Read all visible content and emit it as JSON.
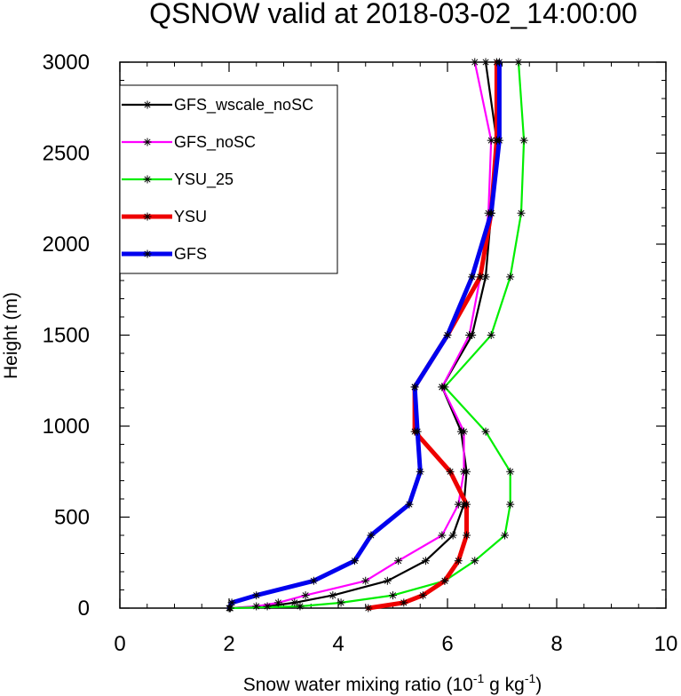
{
  "chart_data": {
    "type": "line",
    "title": "QSNOW valid at 2018-03-02_14:00:00",
    "xlabel": {
      "main": "Snow water mixing ratio (10",
      "sup1": "-1",
      "mid": " g kg",
      "sup2": "-1",
      "end": ")"
    },
    "ylabel": "Height (m)",
    "xlim": [
      0,
      10
    ],
    "ylim": [
      0,
      3000
    ],
    "xticks": [
      "0",
      "2",
      "4",
      "6",
      "8",
      "10"
    ],
    "yticks": [
      "0",
      "500",
      "1000",
      "1500",
      "2000",
      "2500",
      "3000"
    ],
    "legend_position": "top-left",
    "grid": false,
    "series": [
      {
        "name": "GFS_wscale_noSC",
        "color": "#000000",
        "width": "thin",
        "points": [
          [
            2.02,
            0
          ],
          [
            2.7,
            10
          ],
          [
            3.2,
            30
          ],
          [
            3.9,
            70
          ],
          [
            4.9,
            150
          ],
          [
            5.6,
            260
          ],
          [
            6.1,
            400
          ],
          [
            6.3,
            570
          ],
          [
            6.35,
            750
          ],
          [
            6.25,
            970
          ],
          [
            5.9,
            1215
          ],
          [
            6.45,
            1500
          ],
          [
            6.7,
            1820
          ],
          [
            6.8,
            2170
          ],
          [
            6.9,
            2570
          ],
          [
            6.7,
            3000
          ]
        ]
      },
      {
        "name": "GFS_noSC",
        "color": "#ff00ff",
        "width": "thin",
        "points": [
          [
            2.02,
            0
          ],
          [
            2.5,
            10
          ],
          [
            2.9,
            30
          ],
          [
            3.4,
            70
          ],
          [
            4.5,
            150
          ],
          [
            5.1,
            260
          ],
          [
            5.9,
            400
          ],
          [
            6.2,
            570
          ],
          [
            6.3,
            750
          ],
          [
            6.3,
            970
          ],
          [
            5.9,
            1215
          ],
          [
            6.4,
            1500
          ],
          [
            6.6,
            1820
          ],
          [
            6.75,
            2170
          ],
          [
            6.8,
            2570
          ],
          [
            6.5,
            3000
          ]
        ]
      },
      {
        "name": "YSU_25",
        "color": "#00ee00",
        "width": "thin",
        "points": [
          [
            2.02,
            0
          ],
          [
            3.3,
            10
          ],
          [
            4.05,
            30
          ],
          [
            5.0,
            70
          ],
          [
            5.95,
            150
          ],
          [
            6.5,
            260
          ],
          [
            7.05,
            400
          ],
          [
            7.15,
            570
          ],
          [
            7.15,
            750
          ],
          [
            6.7,
            970
          ],
          [
            5.95,
            1215
          ],
          [
            6.8,
            1500
          ],
          [
            7.15,
            1820
          ],
          [
            7.35,
            2170
          ],
          [
            7.4,
            2570
          ],
          [
            7.3,
            3000
          ]
        ]
      },
      {
        "name": "YSU",
        "color": "#ee0000",
        "width": "thick",
        "points": [
          [
            4.55,
            0
          ],
          [
            5.2,
            30
          ],
          [
            5.55,
            70
          ],
          [
            5.95,
            150
          ],
          [
            6.2,
            260
          ],
          [
            6.35,
            400
          ],
          [
            6.35,
            570
          ],
          [
            6.05,
            750
          ],
          [
            5.4,
            970
          ],
          [
            5.4,
            1215
          ],
          [
            6.0,
            1500
          ],
          [
            6.6,
            1820
          ],
          [
            6.8,
            2170
          ],
          [
            6.9,
            2570
          ],
          [
            6.9,
            3000
          ]
        ]
      },
      {
        "name": "GFS",
        "color": "#0000ee",
        "width": "thick",
        "points": [
          [
            2.0,
            0
          ],
          [
            2.05,
            30
          ],
          [
            2.5,
            70
          ],
          [
            3.55,
            150
          ],
          [
            4.3,
            260
          ],
          [
            4.6,
            400
          ],
          [
            5.3,
            570
          ],
          [
            5.5,
            750
          ],
          [
            5.45,
            970
          ],
          [
            5.4,
            1215
          ],
          [
            6.0,
            1500
          ],
          [
            6.45,
            1820
          ],
          [
            6.8,
            2170
          ],
          [
            6.95,
            2570
          ],
          [
            6.95,
            3000
          ]
        ]
      }
    ]
  }
}
